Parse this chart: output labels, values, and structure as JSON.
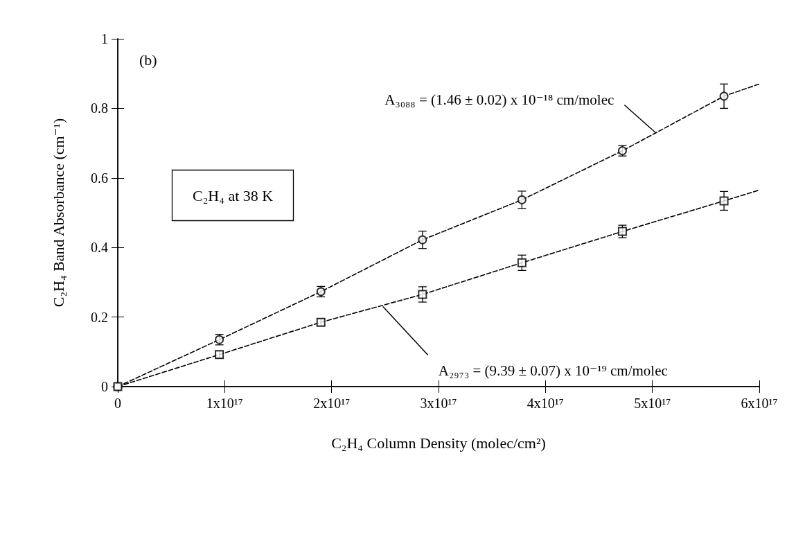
{
  "chart_data": {
    "type": "scatter",
    "xlabel": "C₂H₄ Column Density (molec/cm²)",
    "ylabel": "C₂H₄ Band Absorbance (cm⁻¹)",
    "x": [
      0,
      9.5e+16,
      1.9e+17,
      2.85e+17,
      3.78e+17,
      4.72e+17,
      5.67e+17
    ],
    "series": [
      {
        "color": "#000000",
        "marker": "circle",
        "values": [
          0,
          0.135,
          0.273,
          0.422,
          0.537,
          0.678,
          0.835
        ],
        "errors": [
          null,
          0.015,
          0.015,
          0.025,
          0.025,
          0.015,
          0.035
        ]
      },
      {
        "color": "#000000",
        "marker": "square",
        "values": [
          0,
          0.092,
          0.185,
          0.265,
          0.356,
          0.446,
          0.534
        ],
        "errors": [
          null,
          0.01,
          0.01,
          0.022,
          0.022,
          0.018,
          0.027
        ]
      },
      {
        "type": "line",
        "color": "#000000",
        "marker": "none",
        "line_style": "dashed",
        "x": [
          0,
          9.5e+16,
          1.9e+17,
          2.85e+17,
          3.78e+17,
          4.72e+17,
          5.67e+17,
          6e+17
        ],
        "values": [
          0,
          0.135,
          0.273,
          0.422,
          0.537,
          0.678,
          0.835,
          0.87
        ]
      },
      {
        "type": "line",
        "color": "#000000",
        "marker": "none",
        "line_style": "dashed",
        "x": [
          0,
          9.5e+16,
          1.9e+17,
          2.85e+17,
          3.78e+17,
          4.72e+17,
          5.67e+17,
          6e+17
        ],
        "values": [
          0,
          0.092,
          0.185,
          0.265,
          0.356,
          0.446,
          0.534,
          0.565
        ]
      }
    ],
    "annotations": [
      "(b)",
      "C₂H₄ at 38 K",
      {
        "text": "A₃₀₈₈ = (1.46 ± 0.02) x 10⁻¹⁸ cm/molec",
        "x": 5.03e+17,
        "y": 0.73
      },
      {
        "text": "A₂₉₇₃ = (9.39 ± 0.07) x 10⁻¹⁹ cm/molec",
        "x": 2.48e+17,
        "y": 0.23
      }
    ],
    "xlim": [
      0,
      6e+17
    ],
    "xticks": [
      0,
      {
        "value": 1e+17,
        "label": "1x10¹⁷"
      },
      {
        "value": 2e+17,
        "label": "2x10¹⁷"
      },
      {
        "value": 3e+17,
        "label": "3x10¹⁷"
      },
      {
        "value": 4e+17,
        "label": "4x10¹⁷"
      },
      {
        "value": 5e+17,
        "label": "5x10¹⁷"
      },
      {
        "value": 6e+17,
        "label": "6x10¹⁷"
      }
    ],
    "ylim": [
      0,
      1
    ],
    "yticks": [
      0,
      0.2,
      0.4,
      0.6,
      0.8,
      1
    ],
    "grid": false
  }
}
